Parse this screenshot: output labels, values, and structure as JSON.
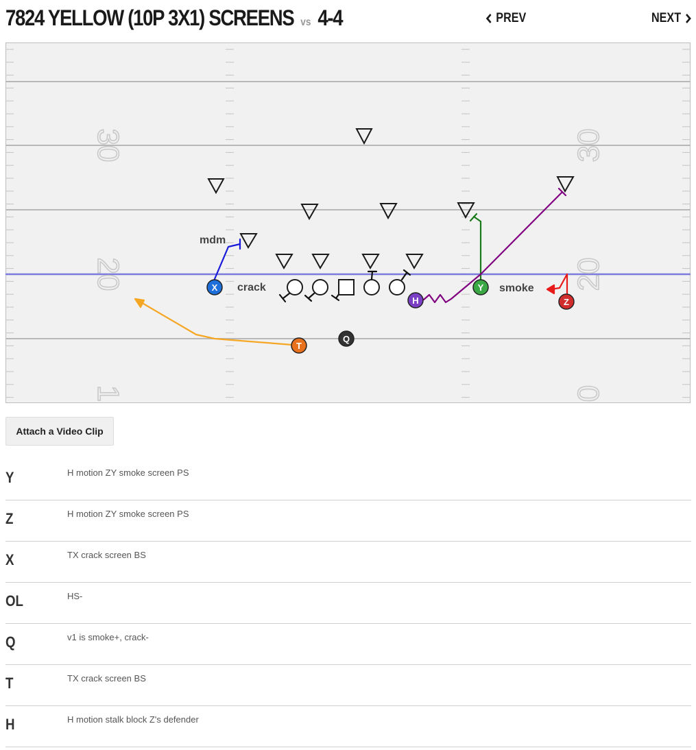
{
  "header": {
    "title": "7824 YELLOW (10P 3X1) SCREENS",
    "vs_label": "vs",
    "opponent": "4-4",
    "prev_label": "PREV",
    "next_label": "NEXT"
  },
  "field": {
    "yard_numbers_left": [
      "30",
      "20",
      "1"
    ],
    "yard_numbers_right": [
      "30",
      "20",
      "0"
    ],
    "line_of_scrimmage_color": "#7b7bdc",
    "labels": {
      "mdm": "mdm",
      "crack": "crack",
      "smoke": "smoke"
    },
    "players": [
      {
        "id": "X",
        "color": "#1e6fd9"
      },
      {
        "id": "Y",
        "color": "#3aa845"
      },
      {
        "id": "Z",
        "color": "#d22d2d"
      },
      {
        "id": "H",
        "color": "#7a3fc4"
      },
      {
        "id": "T",
        "color": "#e8711e"
      },
      {
        "id": "Q",
        "color": "#333333"
      }
    ],
    "route_colors": {
      "X": "#1a1adb",
      "Y": "#1a7a1a",
      "Z": "#e81a1a",
      "H": "#800080",
      "T": "#f5a623",
      "OL": "#111111"
    }
  },
  "attach_button": {
    "label": "Attach a Video Clip"
  },
  "notes": [
    {
      "pos": "Y",
      "text": "H motion ZY smoke screen PS"
    },
    {
      "pos": "Z",
      "text": "H motion ZY smoke screen PS"
    },
    {
      "pos": "X",
      "text": "TX crack screen BS"
    },
    {
      "pos": "OL",
      "text": "HS-"
    },
    {
      "pos": "Q",
      "text": "v1 is smoke+, crack-"
    },
    {
      "pos": "T",
      "text": "TX crack screen BS"
    },
    {
      "pos": "H",
      "text": "H motion stalk block Z's defender"
    }
  ]
}
